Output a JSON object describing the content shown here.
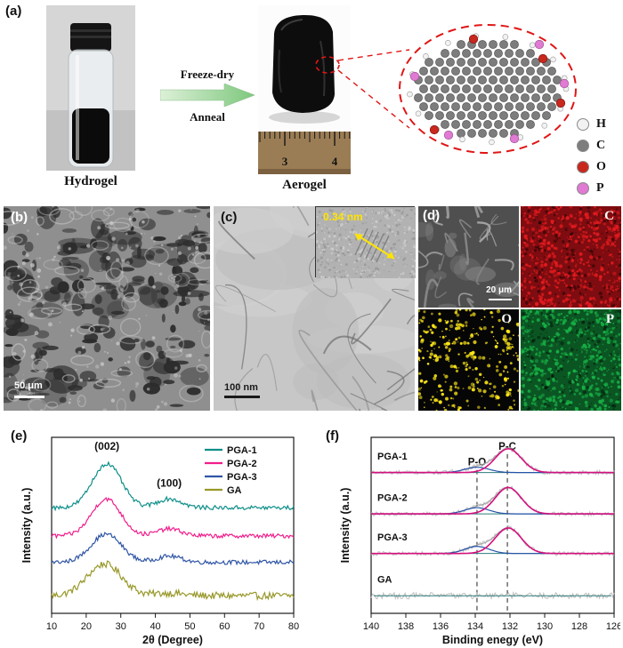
{
  "panels": {
    "a": {
      "label": "(a)",
      "hydrogel_caption": "Hydrogel",
      "aerogel_caption": "Aerogel",
      "process_top": "Freeze-dry",
      "process_bottom": "Anneal",
      "ruler_numbers": [
        "3",
        "4"
      ],
      "legend": [
        {
          "symbol": "H",
          "color": "#f2f2f2"
        },
        {
          "symbol": "C",
          "color": "#7d7d7d"
        },
        {
          "symbol": "O",
          "color": "#c8281e"
        },
        {
          "symbol": "P",
          "color": "#e07ad2"
        }
      ]
    },
    "b": {
      "label": "(b)",
      "scale_bar": "50 μm"
    },
    "c": {
      "label": "(c)",
      "scale_bar": "100 nm",
      "inset_annotation": "0.34 nm"
    },
    "d": {
      "label": "(d)",
      "scale_bar": "20 μm",
      "maps": [
        {
          "element": "C",
          "color": "#e31b1f"
        },
        {
          "element": "O",
          "color": "#ffe818"
        },
        {
          "element": "P",
          "color": "#17b045"
        }
      ]
    },
    "e": {
      "label": "(e)"
    },
    "f": {
      "label": "(f)"
    }
  },
  "chart_data": [
    {
      "id": "xrd",
      "panel": "e",
      "type": "line",
      "title": "",
      "xlabel": "2θ (Degree)",
      "ylabel": "Intensity (a.u.)",
      "xlim": [
        10,
        80
      ],
      "xticks": [
        10,
        20,
        30,
        40,
        50,
        60,
        70,
        80
      ],
      "grid": false,
      "legend_position": "top-right",
      "annotations": [
        {
          "text": "(002)",
          "x": 26,
          "y": 0.93
        },
        {
          "text": "(100)",
          "x": 44,
          "y": 0.72
        }
      ],
      "series": [
        {
          "name": "PGA-1",
          "color": "#0f8f8a",
          "baseline": 0.6,
          "noise": 0.012,
          "peaks": [
            {
              "center": 26.0,
              "height": 0.25,
              "width": 4.2
            },
            {
              "center": 44.0,
              "height": 0.05,
              "width": 3.5
            }
          ]
        },
        {
          "name": "PGA-2",
          "color": "#f01e8c",
          "baseline": 0.44,
          "noise": 0.012,
          "peaks": [
            {
              "center": 25.8,
              "height": 0.21,
              "width": 4.2
            },
            {
              "center": 44.0,
              "height": 0.04,
              "width": 3.5
            }
          ]
        },
        {
          "name": "PGA-3",
          "color": "#2f55a5",
          "baseline": 0.29,
          "noise": 0.012,
          "peaks": [
            {
              "center": 25.8,
              "height": 0.16,
              "width": 4.4
            },
            {
              "center": 44.0,
              "height": 0.035,
              "width": 3.5
            }
          ]
        },
        {
          "name": "GA",
          "color": "#98982a",
          "baseline": 0.1,
          "noise": 0.02,
          "peaks": [
            {
              "center": 25.3,
              "height": 0.18,
              "width": 5.0
            },
            {
              "center": 44.0,
              "height": 0.015,
              "width": 4.0
            }
          ]
        }
      ]
    },
    {
      "id": "xps-p2p",
      "panel": "f",
      "type": "line",
      "title": "",
      "xlabel": "Binding enegy (eV)",
      "ylabel": "Intensity (a.u.)",
      "xlim": [
        140,
        126
      ],
      "xticks": [
        140,
        138,
        136,
        134,
        132,
        130,
        128,
        126
      ],
      "grid": false,
      "fit_colors": {
        "raw": "#b8b8b8",
        "envelope": "#9a9a9a",
        "baseline": "#2e7d7d",
        "p_c": "#d4117e",
        "p_o": "#2453a8"
      },
      "dashed_lines": [
        {
          "x": 133.9,
          "label": "P-O",
          "label_y": 0.84
        },
        {
          "x": 132.15,
          "label": "P-C",
          "label_y": 0.93
        }
      ],
      "series": [
        {
          "name": "PGA-1",
          "baseline": 0.8,
          "noise": 0.012,
          "p_c": {
            "center": 132.1,
            "height": 0.135,
            "width": 0.75
          },
          "p_o": {
            "center": 133.9,
            "height": 0.03,
            "width": 0.7
          }
        },
        {
          "name": "PGA-2",
          "baseline": 0.565,
          "noise": 0.012,
          "p_c": {
            "center": 132.1,
            "height": 0.15,
            "width": 0.75
          },
          "p_o": {
            "center": 133.9,
            "height": 0.035,
            "width": 0.7
          }
        },
        {
          "name": "PGA-3",
          "baseline": 0.34,
          "noise": 0.012,
          "p_c": {
            "center": 132.1,
            "height": 0.145,
            "width": 0.75
          },
          "p_o": {
            "center": 133.9,
            "height": 0.04,
            "width": 0.7
          }
        },
        {
          "name": "GA",
          "baseline": 0.1,
          "noise": 0.018,
          "p_c": null,
          "p_o": null
        }
      ]
    }
  ]
}
